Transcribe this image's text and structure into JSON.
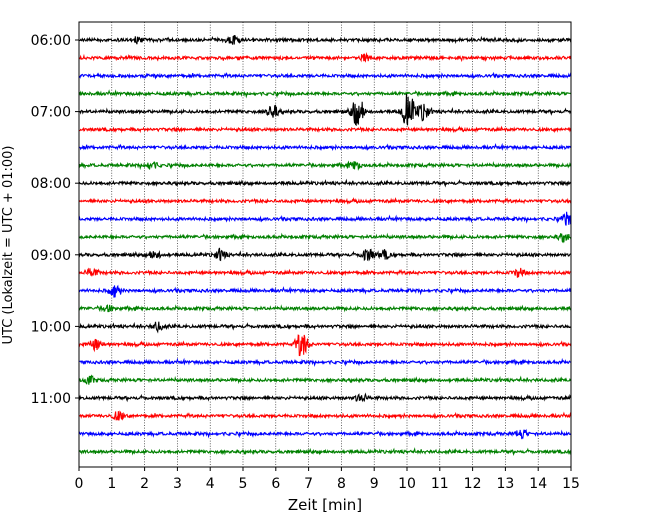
{
  "chart_data": {
    "type": "line",
    "xlabel": "Zeit  [min]",
    "ylabel": "UTC (Lokalzeit = UTC + 01:00)",
    "xlim": [
      0,
      15
    ],
    "x_ticks": [
      "0",
      "1",
      "2",
      "3",
      "4",
      "5",
      "6",
      "7",
      "8",
      "9",
      "10",
      "11",
      "12",
      "13",
      "14",
      "15"
    ],
    "y_tick_labels": [
      "06:00",
      "07:00",
      "08:00",
      "09:00",
      "10:00",
      "11:00"
    ],
    "grid": "vertical dotted lines at each minute",
    "trace_colors": [
      "#000000",
      "#ff0000",
      "#0000ff",
      "#008000"
    ],
    "traces": [
      {
        "start": "06:00",
        "color": "#000000",
        "events": [
          {
            "t": 1.8,
            "amp": 3
          },
          {
            "t": 4.7,
            "amp": 4
          }
        ]
      },
      {
        "start": "06:15",
        "color": "#ff0000",
        "events": [
          {
            "t": 8.7,
            "amp": 3
          }
        ]
      },
      {
        "start": "06:30",
        "color": "#0000ff",
        "events": []
      },
      {
        "start": "06:45",
        "color": "#008000",
        "events": []
      },
      {
        "start": "07:00",
        "color": "#000000",
        "events": [
          {
            "t": 5.9,
            "amp": 6
          },
          {
            "t": 8.5,
            "amp": 16
          },
          {
            "t": 10.05,
            "amp": 19
          },
          {
            "t": 10.5,
            "amp": 8
          }
        ]
      },
      {
        "start": "07:15",
        "color": "#ff0000",
        "events": []
      },
      {
        "start": "07:30",
        "color": "#0000ff",
        "events": []
      },
      {
        "start": "07:45",
        "color": "#008000",
        "events": [
          {
            "t": 2.2,
            "amp": 4
          },
          {
            "t": 8.4,
            "amp": 4
          }
        ]
      },
      {
        "start": "08:00",
        "color": "#000000",
        "events": []
      },
      {
        "start": "08:15",
        "color": "#ff0000",
        "events": []
      },
      {
        "start": "08:30",
        "color": "#0000ff",
        "events": [
          {
            "t": 14.9,
            "amp": 6
          }
        ]
      },
      {
        "start": "08:45",
        "color": "#008000",
        "events": [
          {
            "t": 14.8,
            "amp": 4
          }
        ]
      },
      {
        "start": "09:00",
        "color": "#000000",
        "events": [
          {
            "t": 2.3,
            "amp": 4
          },
          {
            "t": 4.3,
            "amp": 5
          },
          {
            "t": 8.8,
            "amp": 6
          },
          {
            "t": 9.3,
            "amp": 4
          }
        ]
      },
      {
        "start": "09:15",
        "color": "#ff0000",
        "events": [
          {
            "t": 0.4,
            "amp": 4
          },
          {
            "t": 13.4,
            "amp": 4
          }
        ]
      },
      {
        "start": "09:30",
        "color": "#0000ff",
        "events": [
          {
            "t": 1.1,
            "amp": 6
          }
        ]
      },
      {
        "start": "09:45",
        "color": "#008000",
        "events": [
          {
            "t": 0.9,
            "amp": 3
          }
        ]
      },
      {
        "start": "10:00",
        "color": "#000000",
        "events": [
          {
            "t": 2.4,
            "amp": 4
          }
        ]
      },
      {
        "start": "10:15",
        "color": "#ff0000",
        "events": [
          {
            "t": 0.5,
            "amp": 5
          },
          {
            "t": 6.8,
            "amp": 14
          }
        ]
      },
      {
        "start": "10:30",
        "color": "#0000ff",
        "events": []
      },
      {
        "start": "10:45",
        "color": "#008000",
        "events": [
          {
            "t": 0.3,
            "amp": 4
          }
        ]
      },
      {
        "start": "11:00",
        "color": "#000000",
        "events": [
          {
            "t": 8.6,
            "amp": 4
          }
        ]
      },
      {
        "start": "11:15",
        "color": "#ff0000",
        "events": [
          {
            "t": 1.2,
            "amp": 4
          }
        ]
      },
      {
        "start": "11:30",
        "color": "#0000ff",
        "events": [
          {
            "t": 13.5,
            "amp": 4
          }
        ]
      },
      {
        "start": "11:45",
        "color": "#008000",
        "events": []
      }
    ]
  }
}
